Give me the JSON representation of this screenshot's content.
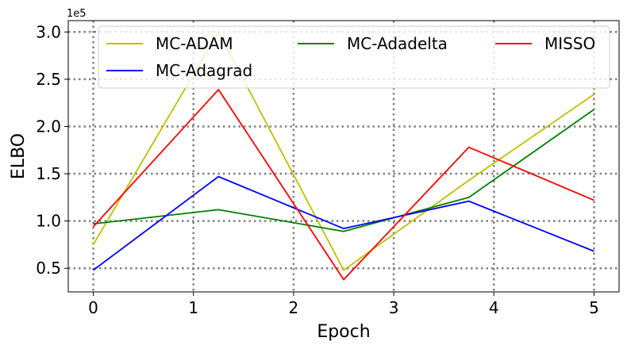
{
  "chart_data": {
    "type": "line",
    "x": [
      0,
      1.25,
      2.5,
      3.75,
      5
    ],
    "xlabel": "Epoch",
    "ylabel": "ELBO",
    "y_multiplier": "1e5",
    "xlim": [
      -0.25,
      5.25
    ],
    "ylim": [
      0.25,
      3.12
    ],
    "x_ticks": [
      0,
      1,
      2,
      3,
      4,
      5
    ],
    "x_tick_labels": [
      "0",
      "1",
      "2",
      "3",
      "4",
      "5"
    ],
    "y_ticks": [
      0.5,
      1.0,
      1.5,
      2.0,
      2.5,
      3.0
    ],
    "y_tick_labels": [
      "0.5",
      "1.0",
      "1.5",
      "2.0",
      "2.5",
      "3.0"
    ],
    "grid": true,
    "legend_position": "top",
    "series": [
      {
        "name": "MC-ADAM",
        "color": "#bfbf00",
        "values": [
          0.75,
          3.0,
          0.48,
          1.43,
          2.34
        ]
      },
      {
        "name": "MC-Adadelta",
        "color": "#008000",
        "values": [
          0.97,
          1.12,
          0.89,
          1.25,
          2.18
        ]
      },
      {
        "name": "MISSO",
        "color": "#ff0000",
        "values": [
          0.94,
          2.39,
          0.38,
          1.78,
          1.22
        ]
      },
      {
        "name": "MC-Adagrad",
        "color": "#0000ff",
        "values": [
          0.48,
          1.47,
          0.92,
          1.21,
          0.68
        ]
      }
    ]
  }
}
